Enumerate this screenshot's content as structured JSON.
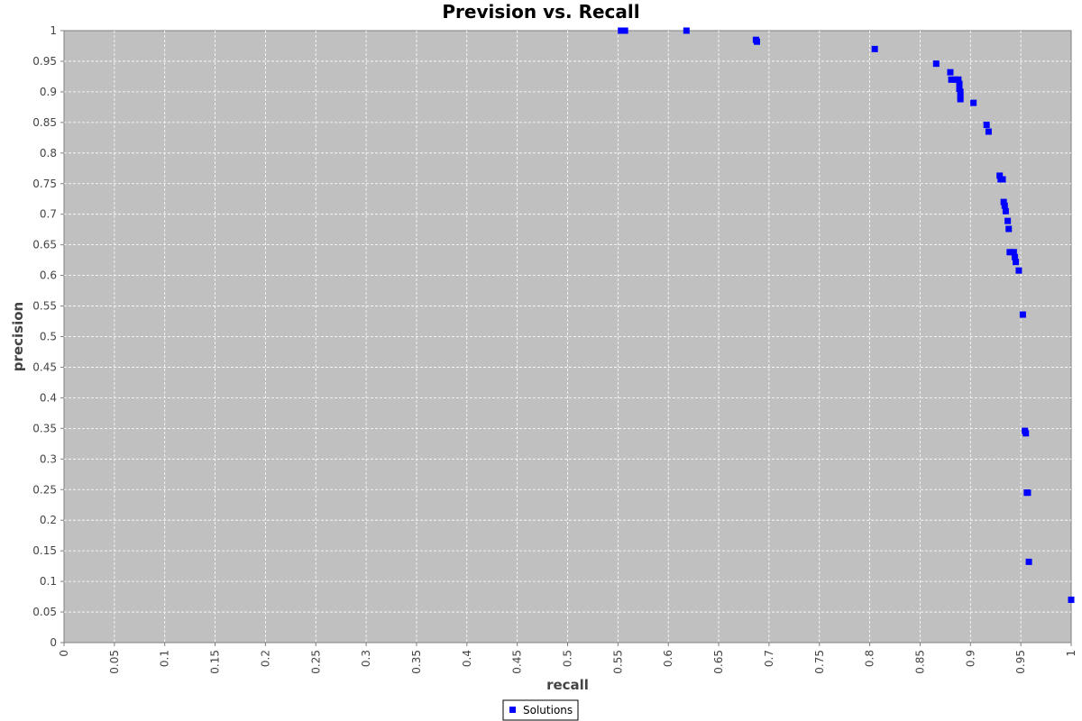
{
  "chart_data": {
    "type": "scatter",
    "title": "Prevision vs. Recall",
    "xlabel": "recall",
    "ylabel": "precision",
    "xlim": [
      0,
      1
    ],
    "ylim": [
      0,
      1
    ],
    "x_ticks": [
      "0",
      "0.05",
      "0.1",
      "0.15",
      "0.2",
      "0.25",
      "0.3",
      "0.35",
      "0.4",
      "0.45",
      "0.5",
      "0.55",
      "0.6",
      "0.65",
      "0.7",
      "0.75",
      "0.8",
      "0.85",
      "0.9",
      "0.95",
      "1"
    ],
    "y_ticks": [
      "0",
      "0.05",
      "0.1",
      "0.15",
      "0.2",
      "0.25",
      "0.3",
      "0.35",
      "0.4",
      "0.45",
      "0.5",
      "0.55",
      "0.6",
      "0.65",
      "0.7",
      "0.75",
      "0.8",
      "0.85",
      "0.9",
      "0.95",
      "1"
    ],
    "grid": true,
    "legend_position": "bottom-center",
    "colors": {
      "plot_bg": "#c0c0c0",
      "grid": "#ffffff",
      "series": "#0000ff"
    },
    "series": [
      {
        "name": "Solutions",
        "points": [
          {
            "x": 0.553,
            "y": 1.0
          },
          {
            "x": 0.557,
            "y": 1.0
          },
          {
            "x": 0.618,
            "y": 1.0
          },
          {
            "x": 0.687,
            "y": 0.985
          },
          {
            "x": 0.688,
            "y": 0.982
          },
          {
            "x": 0.805,
            "y": 0.97
          },
          {
            "x": 0.866,
            "y": 0.946
          },
          {
            "x": 0.88,
            "y": 0.932
          },
          {
            "x": 0.881,
            "y": 0.92
          },
          {
            "x": 0.885,
            "y": 0.92
          },
          {
            "x": 0.888,
            "y": 0.92
          },
          {
            "x": 0.889,
            "y": 0.913
          },
          {
            "x": 0.889,
            "y": 0.905
          },
          {
            "x": 0.89,
            "y": 0.9
          },
          {
            "x": 0.89,
            "y": 0.893
          },
          {
            "x": 0.89,
            "y": 0.888
          },
          {
            "x": 0.903,
            "y": 0.882
          },
          {
            "x": 0.916,
            "y": 0.846
          },
          {
            "x": 0.918,
            "y": 0.835
          },
          {
            "x": 0.929,
            "y": 0.763
          },
          {
            "x": 0.93,
            "y": 0.757
          },
          {
            "x": 0.932,
            "y": 0.757
          },
          {
            "x": 0.933,
            "y": 0.72
          },
          {
            "x": 0.934,
            "y": 0.714
          },
          {
            "x": 0.935,
            "y": 0.705
          },
          {
            "x": 0.937,
            "y": 0.689
          },
          {
            "x": 0.938,
            "y": 0.676
          },
          {
            "x": 0.939,
            "y": 0.638
          },
          {
            "x": 0.943,
            "y": 0.638
          },
          {
            "x": 0.944,
            "y": 0.63
          },
          {
            "x": 0.945,
            "y": 0.622
          },
          {
            "x": 0.948,
            "y": 0.608
          },
          {
            "x": 0.952,
            "y": 0.536
          },
          {
            "x": 0.954,
            "y": 0.346
          },
          {
            "x": 0.955,
            "y": 0.342
          },
          {
            "x": 0.956,
            "y": 0.245
          },
          {
            "x": 0.957,
            "y": 0.245
          },
          {
            "x": 0.958,
            "y": 0.132
          },
          {
            "x": 1.0,
            "y": 0.07
          }
        ]
      }
    ]
  }
}
